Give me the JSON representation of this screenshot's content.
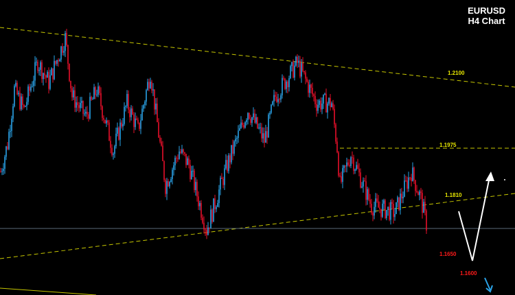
{
  "chart_data": {
    "type": "candlestick",
    "title": "EURUSD",
    "subtitle": "H4 Chart",
    "colors": {
      "up": "#2aa3e8",
      "down": "#e8102a",
      "background": "#000000",
      "level_yellow": "#e8e800",
      "level_red": "#ff1a1a",
      "trendline": "#c8c800",
      "current_price_line": "#5a6a7a",
      "projection_arrow": "#ffffff",
      "down_arrow": "#2aa3e8"
    },
    "price_path": {
      "bar": [
        0,
        5,
        10,
        17,
        27,
        35,
        47,
        52,
        62,
        70,
        82,
        92,
        100,
        109,
        120,
        130,
        137,
        150,
        165,
        180,
        192,
        200,
        216,
        230,
        241,
        245,
        247,
        255,
        270,
        287,
        299,
        306,
        311
      ],
      "price": [
        1.1903,
        1.1988,
        1.2156,
        1.2093,
        1.2241,
        1.2178,
        1.2315,
        1.2135,
        1.2072,
        1.2156,
        1.1967,
        1.2114,
        1.203,
        1.2209,
        1.1861,
        1.1967,
        1.1924,
        1.1724,
        1.1924,
        1.2093,
        1.1998,
        1.2135,
        1.2237,
        1.2114,
        1.2114,
        1.1977,
        1.1861,
        1.1956,
        1.1798,
        1.1777,
        1.1903,
        1.1819,
        1.1724
      ]
    },
    "levels": [
      {
        "label": "1.2100",
        "color": "#e8e800"
      },
      {
        "label": "1.1975",
        "color": "#e8e800"
      },
      {
        "label": "1.1810",
        "color": "#e8e800"
      },
      {
        "label": "1.1650",
        "color": "#ff1a1a"
      },
      {
        "label": "1.1600",
        "color": "#ff1a1a"
      }
    ],
    "horizontal_level": 1.1975,
    "current_price": 1.1728,
    "grid": false,
    "legend": "none"
  }
}
